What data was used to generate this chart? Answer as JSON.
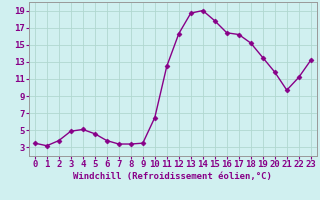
{
  "x": [
    0,
    1,
    2,
    3,
    4,
    5,
    6,
    7,
    8,
    9,
    10,
    11,
    12,
    13,
    14,
    15,
    16,
    17,
    18,
    19,
    20,
    21,
    22,
    23
  ],
  "y": [
    3.5,
    3.2,
    3.8,
    4.9,
    5.1,
    4.6,
    3.8,
    3.4,
    3.4,
    3.5,
    6.5,
    12.5,
    16.3,
    18.7,
    19.0,
    17.8,
    16.4,
    16.2,
    15.2,
    13.5,
    11.8,
    9.7,
    11.2,
    13.2
  ],
  "line_color": "#880088",
  "marker": "D",
  "marker_size": 2.5,
  "bg_color": "#d0f0f0",
  "grid_color": "#b0d8d0",
  "xlabel": "Windchill (Refroidissement éolien,°C)",
  "ylabel": "",
  "title": "",
  "ylim": [
    2,
    20
  ],
  "xlim": [
    -0.5,
    23.5
  ],
  "yticks": [
    3,
    5,
    7,
    9,
    11,
    13,
    15,
    17,
    19
  ],
  "xticks": [
    0,
    1,
    2,
    3,
    4,
    5,
    6,
    7,
    8,
    9,
    10,
    11,
    12,
    13,
    14,
    15,
    16,
    17,
    18,
    19,
    20,
    21,
    22,
    23
  ],
  "xlabel_fontsize": 6.5,
  "tick_fontsize": 6.5,
  "line_width": 1.0
}
